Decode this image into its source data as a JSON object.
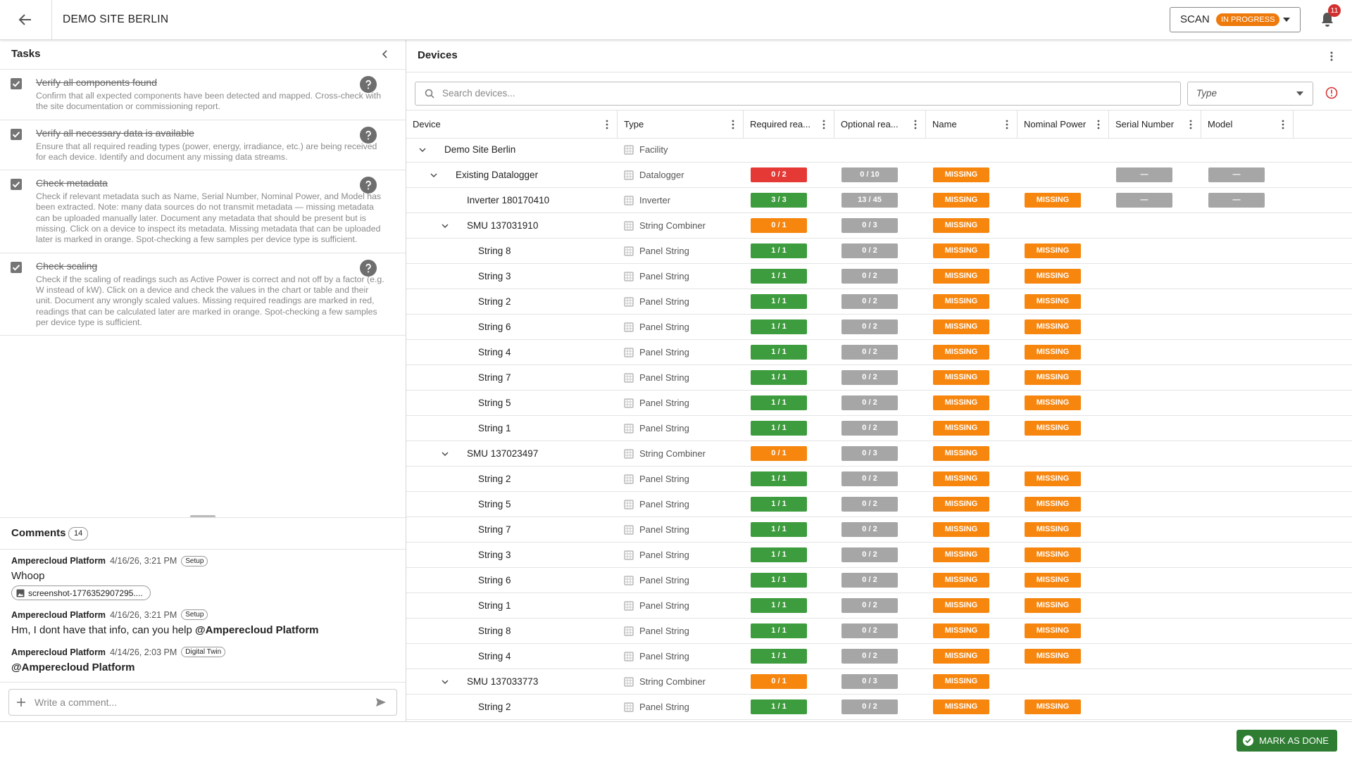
{
  "header": {
    "title": "DEMO SITE BERLIN",
    "scan_label": "SCAN",
    "scan_status": "IN PROGRESS",
    "notifications": 11
  },
  "tasks": {
    "title": "Tasks",
    "items": [
      {
        "title": "Verify all components found",
        "checked": true,
        "description": "Confirm that all expected components have been detected and mapped. Cross-check with the site documentation or commissioning report."
      },
      {
        "title": "Verify all necessary data is available",
        "checked": true,
        "description": "Ensure that all required reading types (power, energy, irradiance, etc.) are being received for each device. Identify and document any missing data streams."
      },
      {
        "title": "Check metadata",
        "checked": true,
        "description": "Check if relevant metadata such as Name, Serial Number, Nominal Power, and Model has been extracted. Note: many data sources do not transmit metadata — missing metadata can be uploaded manually later. Document any metadata that should be present but is missing. Click on a device to inspect its metadata. Missing metadata that can be uploaded later is marked in orange. Spot-checking a few samples per device type is sufficient."
      },
      {
        "title": "Check scaling",
        "checked": true,
        "description": "Check if the scaling of readings such as Active Power is correct and not off by a factor (e.g. W instead of kW). Click on a device and check the values in the chart or table and their unit. Document any wrongly scaled values. Missing required readings are marked in red, readings that can be calculated later are marked in orange. Spot-checking a few samples per device type is sufficient."
      }
    ]
  },
  "comments": {
    "title": "Comments",
    "count": 14,
    "input_placeholder": "Write a comment...",
    "items": [
      {
        "author": "Amperecloud Platform",
        "date": "4/16/26, 3:21 PM",
        "tag": "Setup",
        "text": "Whoop",
        "attachment": "screenshot-1776352907295...."
      },
      {
        "author": "Amperecloud Platform",
        "date": "4/16/26, 3:21 PM",
        "tag": "Setup",
        "text": "Hm, I dont have that info, can you help",
        "mention": "@Amperecloud Platform"
      },
      {
        "author": "Amperecloud Platform",
        "date": "4/14/26, 2:03 PM",
        "tag": "Digital Twin",
        "mention": "@Amperecloud Platform"
      }
    ]
  },
  "devices": {
    "title": "Devices",
    "search_placeholder": "Search devices...",
    "type_filter": "Type",
    "columns": [
      "Device",
      "Type",
      "Required rea...",
      "Optional rea...",
      "Name",
      "Nominal Power",
      "Serial Number",
      "Model"
    ],
    "rows": [
      {
        "name": "Demo Site Berlin",
        "type": "Facility",
        "depth": 0,
        "expandable": true,
        "cells": [
          null,
          null,
          null,
          null,
          null,
          null
        ]
      },
      {
        "name": "Existing Datalogger",
        "type": "Datalogger",
        "depth": 1,
        "expandable": true,
        "cells": [
          {
            "text": "0 / 2",
            "color": "#e53935"
          },
          {
            "text": "0 / 10",
            "color": "#a6a6a6"
          },
          {
            "text": "MISSING",
            "color": "#f7860f"
          },
          null,
          {
            "text": "—",
            "color": "#a6a6a6"
          },
          {
            "text": "—",
            "color": "#a6a6a6"
          }
        ]
      },
      {
        "name": "Inverter 180170410",
        "type": "Inverter",
        "depth": 2,
        "expandable": false,
        "cells": [
          {
            "text": "3 / 3",
            "color": "#3d9c3d"
          },
          {
            "text": "13 / 45",
            "color": "#a6a6a6"
          },
          {
            "text": "MISSING",
            "color": "#f7860f"
          },
          {
            "text": "MISSING",
            "color": "#f7860f"
          },
          {
            "text": "—",
            "color": "#a6a6a6"
          },
          {
            "text": "—",
            "color": "#a6a6a6"
          }
        ]
      },
      {
        "name": "SMU 137031910",
        "type": "String Combiner",
        "depth": 2,
        "expandable": true,
        "cells": [
          {
            "text": "0 / 1",
            "color": "#f7860f"
          },
          {
            "text": "0 / 3",
            "color": "#a6a6a6"
          },
          {
            "text": "MISSING",
            "color": "#f7860f"
          },
          null,
          null,
          null
        ]
      },
      {
        "name": "String 8",
        "type": "Panel String",
        "depth": 3,
        "expandable": false,
        "cells": [
          {
            "text": "1 / 1",
            "color": "#3d9c3d"
          },
          {
            "text": "0 / 2",
            "color": "#a6a6a6"
          },
          {
            "text": "MISSING",
            "color": "#f7860f"
          },
          {
            "text": "MISSING",
            "color": "#f7860f"
          },
          null,
          null
        ]
      },
      {
        "name": "String 3",
        "type": "Panel String",
        "depth": 3,
        "expandable": false,
        "cells": [
          {
            "text": "1 / 1",
            "color": "#3d9c3d"
          },
          {
            "text": "0 / 2",
            "color": "#a6a6a6"
          },
          {
            "text": "MISSING",
            "color": "#f7860f"
          },
          {
            "text": "MISSING",
            "color": "#f7860f"
          },
          null,
          null
        ]
      },
      {
        "name": "String 2",
        "type": "Panel String",
        "depth": 3,
        "expandable": false,
        "cells": [
          {
            "text": "1 / 1",
            "color": "#3d9c3d"
          },
          {
            "text": "0 / 2",
            "color": "#a6a6a6"
          },
          {
            "text": "MISSING",
            "color": "#f7860f"
          },
          {
            "text": "MISSING",
            "color": "#f7860f"
          },
          null,
          null
        ]
      },
      {
        "name": "String 6",
        "type": "Panel String",
        "depth": 3,
        "expandable": false,
        "cells": [
          {
            "text": "1 / 1",
            "color": "#3d9c3d"
          },
          {
            "text": "0 / 2",
            "color": "#a6a6a6"
          },
          {
            "text": "MISSING",
            "color": "#f7860f"
          },
          {
            "text": "MISSING",
            "color": "#f7860f"
          },
          null,
          null
        ]
      },
      {
        "name": "String 4",
        "type": "Panel String",
        "depth": 3,
        "expandable": false,
        "cells": [
          {
            "text": "1 / 1",
            "color": "#3d9c3d"
          },
          {
            "text": "0 / 2",
            "color": "#a6a6a6"
          },
          {
            "text": "MISSING",
            "color": "#f7860f"
          },
          {
            "text": "MISSING",
            "color": "#f7860f"
          },
          null,
          null
        ]
      },
      {
        "name": "String 7",
        "type": "Panel String",
        "depth": 3,
        "expandable": false,
        "cells": [
          {
            "text": "1 / 1",
            "color": "#3d9c3d"
          },
          {
            "text": "0 / 2",
            "color": "#a6a6a6"
          },
          {
            "text": "MISSING",
            "color": "#f7860f"
          },
          {
            "text": "MISSING",
            "color": "#f7860f"
          },
          null,
          null
        ]
      },
      {
        "name": "String 5",
        "type": "Panel String",
        "depth": 3,
        "expandable": false,
        "cells": [
          {
            "text": "1 / 1",
            "color": "#3d9c3d"
          },
          {
            "text": "0 / 2",
            "color": "#a6a6a6"
          },
          {
            "text": "MISSING",
            "color": "#f7860f"
          },
          {
            "text": "MISSING",
            "color": "#f7860f"
          },
          null,
          null
        ]
      },
      {
        "name": "String 1",
        "type": "Panel String",
        "depth": 3,
        "expandable": false,
        "cells": [
          {
            "text": "1 / 1",
            "color": "#3d9c3d"
          },
          {
            "text": "0 / 2",
            "color": "#a6a6a6"
          },
          {
            "text": "MISSING",
            "color": "#f7860f"
          },
          {
            "text": "MISSING",
            "color": "#f7860f"
          },
          null,
          null
        ]
      },
      {
        "name": "SMU 137023497",
        "type": "String Combiner",
        "depth": 2,
        "expandable": true,
        "cells": [
          {
            "text": "0 / 1",
            "color": "#f7860f"
          },
          {
            "text": "0 / 3",
            "color": "#a6a6a6"
          },
          {
            "text": "MISSING",
            "color": "#f7860f"
          },
          null,
          null,
          null
        ]
      },
      {
        "name": "String 2",
        "type": "Panel String",
        "depth": 3,
        "expandable": false,
        "cells": [
          {
            "text": "1 / 1",
            "color": "#3d9c3d"
          },
          {
            "text": "0 / 2",
            "color": "#a6a6a6"
          },
          {
            "text": "MISSING",
            "color": "#f7860f"
          },
          {
            "text": "MISSING",
            "color": "#f7860f"
          },
          null,
          null
        ]
      },
      {
        "name": "String 5",
        "type": "Panel String",
        "depth": 3,
        "expandable": false,
        "cells": [
          {
            "text": "1 / 1",
            "color": "#3d9c3d"
          },
          {
            "text": "0 / 2",
            "color": "#a6a6a6"
          },
          {
            "text": "MISSING",
            "color": "#f7860f"
          },
          {
            "text": "MISSING",
            "color": "#f7860f"
          },
          null,
          null
        ]
      },
      {
        "name": "String 7",
        "type": "Panel String",
        "depth": 3,
        "expandable": false,
        "cells": [
          {
            "text": "1 / 1",
            "color": "#3d9c3d"
          },
          {
            "text": "0 / 2",
            "color": "#a6a6a6"
          },
          {
            "text": "MISSING",
            "color": "#f7860f"
          },
          {
            "text": "MISSING",
            "color": "#f7860f"
          },
          null,
          null
        ]
      },
      {
        "name": "String 3",
        "type": "Panel String",
        "depth": 3,
        "expandable": false,
        "cells": [
          {
            "text": "1 / 1",
            "color": "#3d9c3d"
          },
          {
            "text": "0 / 2",
            "color": "#a6a6a6"
          },
          {
            "text": "MISSING",
            "color": "#f7860f"
          },
          {
            "text": "MISSING",
            "color": "#f7860f"
          },
          null,
          null
        ]
      },
      {
        "name": "String 6",
        "type": "Panel String",
        "depth": 3,
        "expandable": false,
        "cells": [
          {
            "text": "1 / 1",
            "color": "#3d9c3d"
          },
          {
            "text": "0 / 2",
            "color": "#a6a6a6"
          },
          {
            "text": "MISSING",
            "color": "#f7860f"
          },
          {
            "text": "MISSING",
            "color": "#f7860f"
          },
          null,
          null
        ]
      },
      {
        "name": "String 1",
        "type": "Panel String",
        "depth": 3,
        "expandable": false,
        "cells": [
          {
            "text": "1 / 1",
            "color": "#3d9c3d"
          },
          {
            "text": "0 / 2",
            "color": "#a6a6a6"
          },
          {
            "text": "MISSING",
            "color": "#f7860f"
          },
          {
            "text": "MISSING",
            "color": "#f7860f"
          },
          null,
          null
        ]
      },
      {
        "name": "String 8",
        "type": "Panel String",
        "depth": 3,
        "expandable": false,
        "cells": [
          {
            "text": "1 / 1",
            "color": "#3d9c3d"
          },
          {
            "text": "0 / 2",
            "color": "#a6a6a6"
          },
          {
            "text": "MISSING",
            "color": "#f7860f"
          },
          {
            "text": "MISSING",
            "color": "#f7860f"
          },
          null,
          null
        ]
      },
      {
        "name": "String 4",
        "type": "Panel String",
        "depth": 3,
        "expandable": false,
        "cells": [
          {
            "text": "1 / 1",
            "color": "#3d9c3d"
          },
          {
            "text": "0 / 2",
            "color": "#a6a6a6"
          },
          {
            "text": "MISSING",
            "color": "#f7860f"
          },
          {
            "text": "MISSING",
            "color": "#f7860f"
          },
          null,
          null
        ]
      },
      {
        "name": "SMU 137033773",
        "type": "String Combiner",
        "depth": 2,
        "expandable": true,
        "cells": [
          {
            "text": "0 / 1",
            "color": "#f7860f"
          },
          {
            "text": "0 / 3",
            "color": "#a6a6a6"
          },
          {
            "text": "MISSING",
            "color": "#f7860f"
          },
          null,
          null,
          null
        ]
      },
      {
        "name": "String 2",
        "type": "Panel String",
        "depth": 3,
        "expandable": false,
        "cells": [
          {
            "text": "1 / 1",
            "color": "#3d9c3d"
          },
          {
            "text": "0 / 2",
            "color": "#a6a6a6"
          },
          {
            "text": "MISSING",
            "color": "#f7860f"
          },
          {
            "text": "MISSING",
            "color": "#f7860f"
          },
          null,
          null
        ]
      }
    ]
  },
  "footer": {
    "action": "MARK AS DONE"
  }
}
